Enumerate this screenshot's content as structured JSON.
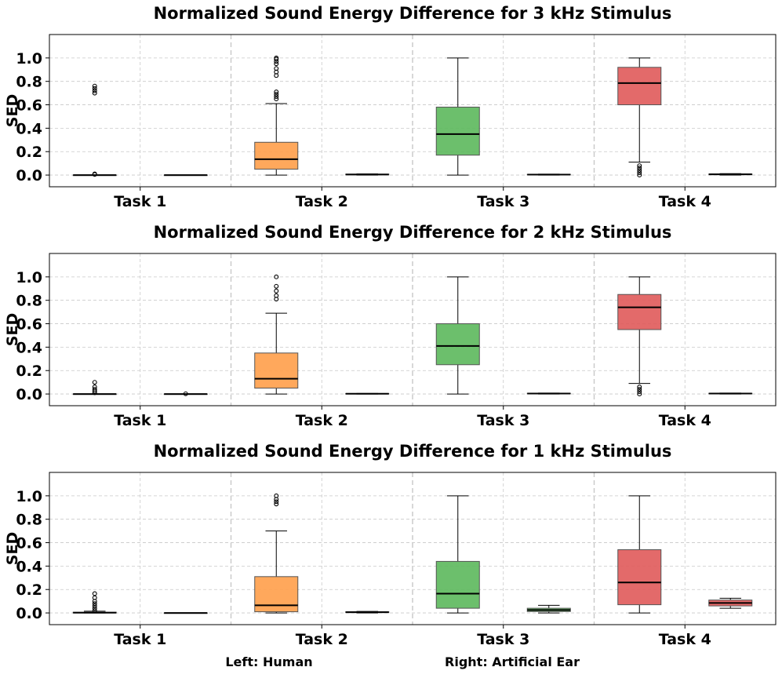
{
  "footer": {
    "left_legend": "Left: Human",
    "right_legend": "Right: Artificial Ear"
  },
  "colors": {
    "task1": "#1f77b4",
    "task2": "#ff9f4a",
    "task3": "#5cb85c",
    "task4": "#e05a5a",
    "whisker": "#000000"
  },
  "chart_data": [
    {
      "type": "box",
      "title": "Normalized Sound Energy Difference for 3 kHz Stimulus",
      "ylabel": "SED",
      "xlabel": "",
      "ylim": [
        -0.1,
        1.2
      ],
      "yticks": [
        "0.0",
        "0.2",
        "0.4",
        "0.6",
        "0.8",
        "1.0"
      ],
      "categories": [
        "Task 1",
        "Task 2",
        "Task 3",
        "Task 4"
      ],
      "series": [
        {
          "name": "Human",
          "boxes": [
            {
              "q1": 0.0,
              "median": 0.0,
              "q3": 0.0,
              "whisker_low": 0.0,
              "whisker_high": 0.0,
              "outliers": [
                0.005,
                0.01,
                0.7,
                0.72,
                0.74,
                0.76
              ]
            },
            {
              "q1": 0.05,
              "median": 0.135,
              "q3": 0.28,
              "whisker_low": 0.0,
              "whisker_high": 0.61,
              "outliers": [
                0.65,
                0.67,
                0.69,
                0.71,
                0.85,
                0.88,
                0.91,
                0.95,
                0.97,
                0.99,
                1.0
              ]
            },
            {
              "q1": 0.17,
              "median": 0.35,
              "q3": 0.58,
              "whisker_low": 0.0,
              "whisker_high": 1.0,
              "outliers": []
            },
            {
              "q1": 0.6,
              "median": 0.785,
              "q3": 0.92,
              "whisker_low": 0.11,
              "whisker_high": 1.0,
              "outliers": [
                0.0,
                0.02,
                0.04,
                0.06,
                0.08
              ]
            }
          ]
        },
        {
          "name": "Artificial Ear",
          "boxes": [
            {
              "q1": 0.0,
              "median": 0.0,
              "q3": 0.0,
              "whisker_low": 0.0,
              "whisker_high": 0.0,
              "outliers": []
            },
            {
              "q1": 0.002,
              "median": 0.005,
              "q3": 0.008,
              "whisker_low": 0.0,
              "whisker_high": 0.01,
              "outliers": []
            },
            {
              "q1": 0.002,
              "median": 0.004,
              "q3": 0.006,
              "whisker_low": 0.0,
              "whisker_high": 0.008,
              "outliers": []
            },
            {
              "q1": 0.003,
              "median": 0.006,
              "q3": 0.009,
              "whisker_low": 0.0,
              "whisker_high": 0.012,
              "outliers": []
            }
          ]
        }
      ]
    },
    {
      "type": "box",
      "title": "Normalized Sound Energy Difference for 2 kHz Stimulus",
      "ylabel": "SED",
      "xlabel": "",
      "ylim": [
        -0.1,
        1.2
      ],
      "yticks": [
        "0.0",
        "0.2",
        "0.4",
        "0.6",
        "0.8",
        "1.0"
      ],
      "categories": [
        "Task 1",
        "Task 2",
        "Task 3",
        "Task 4"
      ],
      "series": [
        {
          "name": "Human",
          "boxes": [
            {
              "q1": 0.0,
              "median": 0.0,
              "q3": 0.0,
              "whisker_low": 0.0,
              "whisker_high": 0.0,
              "outliers": [
                0.01,
                0.025,
                0.04,
                0.06,
                0.1
              ]
            },
            {
              "q1": 0.05,
              "median": 0.13,
              "q3": 0.35,
              "whisker_low": 0.0,
              "whisker_high": 0.69,
              "outliers": [
                0.81,
                0.84,
                0.88,
                0.92,
                1.0
              ]
            },
            {
              "q1": 0.25,
              "median": 0.41,
              "q3": 0.6,
              "whisker_low": 0.0,
              "whisker_high": 1.0,
              "outliers": []
            },
            {
              "q1": 0.55,
              "median": 0.74,
              "q3": 0.85,
              "whisker_low": 0.09,
              "whisker_high": 1.0,
              "outliers": [
                0.0,
                0.02,
                0.04,
                0.06
              ]
            }
          ]
        },
        {
          "name": "Artificial Ear",
          "boxes": [
            {
              "q1": 0.0,
              "median": 0.0,
              "q3": 0.0,
              "whisker_low": 0.0,
              "whisker_high": 0.0,
              "outliers": [
                0.002
              ]
            },
            {
              "q1": 0.0,
              "median": 0.002,
              "q3": 0.004,
              "whisker_low": 0.0,
              "whisker_high": 0.005,
              "outliers": []
            },
            {
              "q1": 0.002,
              "median": 0.004,
              "q3": 0.006,
              "whisker_low": 0.0,
              "whisker_high": 0.008,
              "outliers": []
            },
            {
              "q1": 0.002,
              "median": 0.004,
              "q3": 0.006,
              "whisker_low": 0.0,
              "whisker_high": 0.008,
              "outliers": []
            }
          ]
        }
      ]
    },
    {
      "type": "box",
      "title": "Normalized Sound Energy Difference for 1 kHz Stimulus",
      "ylabel": "SED",
      "xlabel": "",
      "ylim": [
        -0.1,
        1.2
      ],
      "yticks": [
        "0.0",
        "0.2",
        "0.4",
        "0.6",
        "0.8",
        "1.0"
      ],
      "categories": [
        "Task 1",
        "Task 2",
        "Task 3",
        "Task 4"
      ],
      "series": [
        {
          "name": "Human",
          "boxes": [
            {
              "q1": 0.0,
              "median": 0.002,
              "q3": 0.006,
              "whisker_low": 0.0,
              "whisker_high": 0.015,
              "outliers": [
                0.02,
                0.04,
                0.06,
                0.08,
                0.1,
                0.13,
                0.165
              ]
            },
            {
              "q1": 0.01,
              "median": 0.065,
              "q3": 0.31,
              "whisker_low": 0.0,
              "whisker_high": 0.7,
              "outliers": [
                0.93,
                0.95,
                0.97,
                1.0
              ]
            },
            {
              "q1": 0.04,
              "median": 0.165,
              "q3": 0.44,
              "whisker_low": 0.0,
              "whisker_high": 1.0,
              "outliers": []
            },
            {
              "q1": 0.07,
              "median": 0.26,
              "q3": 0.54,
              "whisker_low": 0.0,
              "whisker_high": 1.0,
              "outliers": []
            }
          ]
        },
        {
          "name": "Artificial Ear",
          "boxes": [
            {
              "q1": 0.0,
              "median": 0.0,
              "q3": 0.0,
              "whisker_low": 0.0,
              "whisker_high": 0.0,
              "outliers": []
            },
            {
              "q1": 0.003,
              "median": 0.006,
              "q3": 0.01,
              "whisker_low": 0.0,
              "whisker_high": 0.013,
              "outliers": []
            },
            {
              "q1": 0.012,
              "median": 0.025,
              "q3": 0.04,
              "whisker_low": 0.0,
              "whisker_high": 0.065,
              "outliers": []
            },
            {
              "q1": 0.06,
              "median": 0.085,
              "q3": 0.11,
              "whisker_low": 0.04,
              "whisker_high": 0.125,
              "outliers": []
            }
          ]
        }
      ]
    }
  ]
}
